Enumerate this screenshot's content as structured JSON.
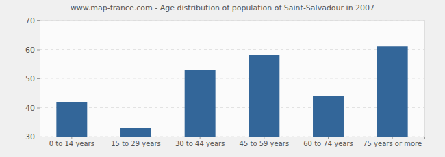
{
  "chart_data": {
    "type": "bar",
    "title": "www.map-france.com - Age distribution of population of Saint-Salvadour in 2007",
    "categories": [
      "0 to 14 years",
      "15 to 29 years",
      "30 to 44 years",
      "45 to 59 years",
      "60 to 74 years",
      "75 years or more"
    ],
    "values": [
      42,
      33,
      53,
      58,
      44,
      61
    ],
    "color": "#336699",
    "ylim": [
      30,
      70
    ],
    "yticks": [
      30,
      40,
      50,
      60,
      70
    ],
    "grid": true
  }
}
